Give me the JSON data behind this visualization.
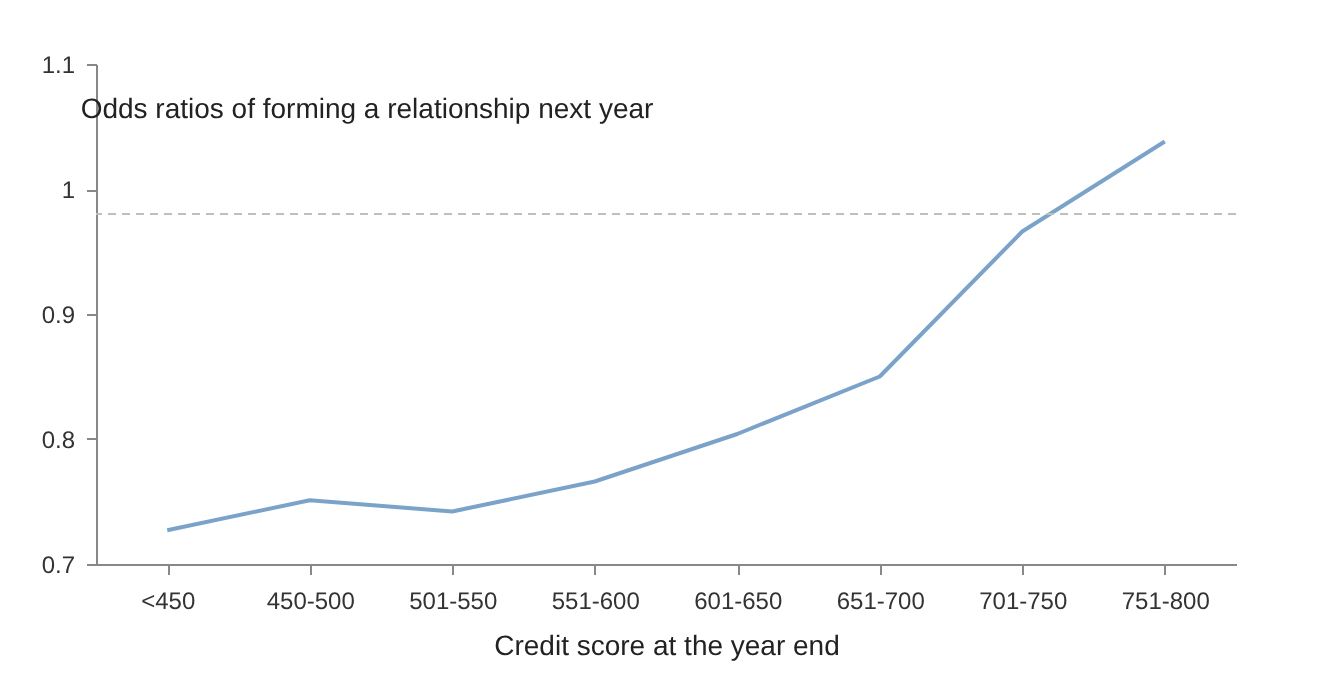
{
  "chart_data": {
    "type": "line",
    "title": "Odds ratios of forming a relationship next year",
    "xlabel": "Credit score at the year end",
    "categories": [
      "<450",
      "450-500",
      "501-550",
      "551-600",
      "601-650",
      "651-700",
      "701-750",
      "751-800"
    ],
    "series": [
      {
        "color": "#7ba3c9",
        "values": [
          0.727,
          0.751,
          0.742,
          0.766,
          0.804,
          0.85,
          0.966,
          1.038
        ]
      }
    ],
    "ylim": [
      0.7,
      1.1
    ],
    "yticks": [
      0.7,
      0.8,
      0.9,
      1,
      1.1
    ],
    "grid": false,
    "ref_lines": [
      {
        "axis": "y",
        "value": 0.98,
        "color": "#bfbfbf",
        "line_style": "dashed"
      }
    ]
  }
}
